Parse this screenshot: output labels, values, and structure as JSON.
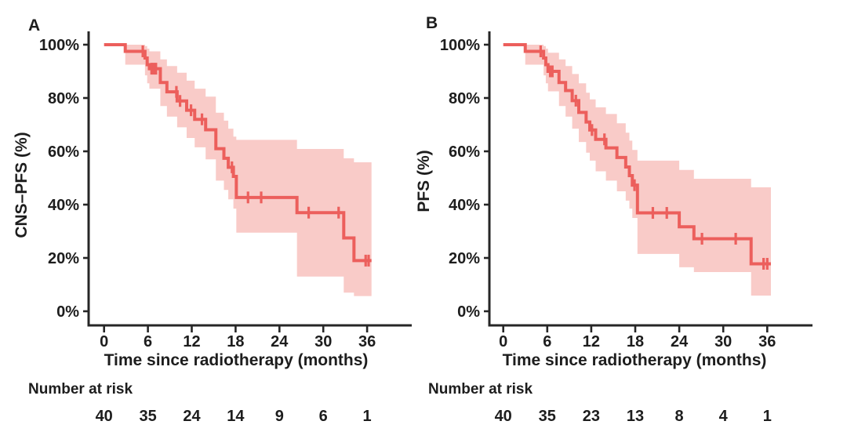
{
  "page": {
    "background": "#ffffff",
    "axis_color": "#262626",
    "text_color": "#1d1d1d"
  },
  "chart_data": [
    {
      "type": "line",
      "subtype": "kaplan_meier_step_with_ci",
      "panel_label": "A",
      "ylabel": "CNS–PFS (%)",
      "xlabel": "Time since radiotherapy (months)",
      "xlim": [
        0,
        42
      ],
      "ylim": [
        0,
        100
      ],
      "xticks": [
        0,
        6,
        12,
        18,
        24,
        30,
        36
      ],
      "xtick_labels": [
        "0",
        "6",
        "12",
        "18",
        "24",
        "30",
        "36"
      ],
      "ytick_values": [
        0,
        20,
        40,
        60,
        80,
        100
      ],
      "ytick_labels": [
        "0%",
        "20%",
        "40%",
        "60%",
        "80%",
        "100%"
      ],
      "grid": false,
      "legend": "none",
      "line_color": "#ec5f5c",
      "band_color": "#f9cbc8",
      "end_time": 36.6,
      "series": [
        {
          "name": "CNS-PFS",
          "steps": [
            [
              0,
              100
            ],
            [
              2.9,
              97.5
            ],
            [
              5.6,
              95
            ],
            [
              5.9,
              92.5
            ],
            [
              6.2,
              91
            ],
            [
              7.7,
              85.8
            ],
            [
              8.6,
              82.3
            ],
            [
              10.0,
              78.9
            ],
            [
              11.3,
              75.4
            ],
            [
              12.4,
              72
            ],
            [
              13.9,
              68.1
            ],
            [
              15.3,
              61
            ],
            [
              16.4,
              57.4
            ],
            [
              17.0,
              54
            ],
            [
              17.7,
              50.6
            ],
            [
              18.1,
              42.7
            ],
            [
              26.4,
              37
            ],
            [
              32.8,
              27.5
            ],
            [
              34.2,
              19
            ]
          ],
          "censor_marks": [
            [
              5.3,
              97.5
            ],
            [
              6.5,
              91
            ],
            [
              6.8,
              91
            ],
            [
              7.1,
              91
            ],
            [
              9.9,
              82.3
            ],
            [
              10.4,
              78.9
            ],
            [
              11.9,
              75.4
            ],
            [
              13.4,
              72
            ],
            [
              17.5,
              54
            ],
            [
              19.7,
              42.7
            ],
            [
              21.5,
              42.7
            ],
            [
              28.0,
              37
            ],
            [
              32.1,
              37
            ],
            [
              35.8,
              19
            ],
            [
              36.2,
              19
            ]
          ],
          "confidence_band": [
            [
              2.9,
              92.5,
              100
            ],
            [
              5.6,
              88.5,
              99.5
            ],
            [
              5.9,
              85.5,
              98.5
            ],
            [
              6.2,
              83.5,
              97.5
            ],
            [
              7.7,
              77,
              94.5
            ],
            [
              8.6,
              73,
              92
            ],
            [
              10.0,
              69,
              89.5
            ],
            [
              11.3,
              65,
              86.5
            ],
            [
              12.4,
              61.5,
              83.5
            ],
            [
              13.9,
              57,
              80.5
            ],
            [
              15.3,
              49,
              74.5
            ],
            [
              16.4,
              45.5,
              71.5
            ],
            [
              17.0,
              42,
              68.5
            ],
            [
              17.7,
              38.5,
              65.5
            ],
            [
              18.1,
              29.5,
              64.3
            ],
            [
              26.4,
              13,
              60.9
            ],
            [
              32.8,
              7,
              57.4
            ],
            [
              34.2,
              5.7,
              55.9
            ]
          ]
        }
      ],
      "number_at_risk": {
        "label": "Number at risk",
        "times": [
          0,
          6,
          12,
          18,
          24,
          30,
          36
        ],
        "counts": [
          40,
          35,
          24,
          14,
          9,
          6,
          1
        ]
      }
    },
    {
      "type": "line",
      "subtype": "kaplan_meier_step_with_ci",
      "panel_label": "B",
      "ylabel": "PFS (%)",
      "xlabel": "Time since radiotherapy (months)",
      "xlim": [
        0,
        42
      ],
      "ylim": [
        0,
        100
      ],
      "xticks": [
        0,
        6,
        12,
        18,
        24,
        30,
        36
      ],
      "xtick_labels": [
        "0",
        "6",
        "12",
        "18",
        "24",
        "30",
        "36"
      ],
      "ytick_values": [
        0,
        20,
        40,
        60,
        80,
        100
      ],
      "ytick_labels": [
        "0%",
        "20%",
        "40%",
        "60%",
        "80%",
        "100%"
      ],
      "grid": false,
      "legend": "none",
      "line_color": "#ec5f5c",
      "band_color": "#f9cbc8",
      "end_time": 36.5,
      "series": [
        {
          "name": "PFS",
          "steps": [
            [
              0,
              100
            ],
            [
              3.0,
              97.5
            ],
            [
              5.5,
              95
            ],
            [
              5.8,
              92.5
            ],
            [
              6.1,
              90
            ],
            [
              7.6,
              85.8
            ],
            [
              8.5,
              82.8
            ],
            [
              9.4,
              79
            ],
            [
              10.3,
              74.6
            ],
            [
              11.3,
              71
            ],
            [
              11.8,
              68
            ],
            [
              12.6,
              64.5
            ],
            [
              14.0,
              61.3
            ],
            [
              15.5,
              57.7
            ],
            [
              16.7,
              54.1
            ],
            [
              17.2,
              50.9
            ],
            [
              17.6,
              47.3
            ],
            [
              18.3,
              36.9
            ],
            [
              24.0,
              31.7
            ],
            [
              26.0,
              27.2
            ],
            [
              33.8,
              17.8
            ]
          ],
          "censor_marks": [
            [
              5.1,
              97.5
            ],
            [
              6.4,
              90
            ],
            [
              6.7,
              90
            ],
            [
              9.9,
              79
            ],
            [
              12.1,
              68
            ],
            [
              13.8,
              64.5
            ],
            [
              17.9,
              47.3
            ],
            [
              20.4,
              36.9
            ],
            [
              22.3,
              36.9
            ],
            [
              27.1,
              27.2
            ],
            [
              31.7,
              27.2
            ],
            [
              35.5,
              17.8
            ],
            [
              36.0,
              17.8
            ]
          ],
          "confidence_band": [
            [
              3.0,
              92.5,
              100
            ],
            [
              5.5,
              88.5,
              99.5
            ],
            [
              5.8,
              85.5,
              98.5
            ],
            [
              6.1,
              82.5,
              97
            ],
            [
              7.6,
              77,
              94.5
            ],
            [
              8.5,
              73,
              92
            ],
            [
              9.4,
              68.5,
              89
            ],
            [
              10.3,
              63.5,
              85.5
            ],
            [
              11.3,
              59.5,
              82
            ],
            [
              11.8,
              56.5,
              79.5
            ],
            [
              12.6,
              52.5,
              76.5
            ],
            [
              14.0,
              49,
              74
            ],
            [
              15.5,
              45,
              70.5
            ],
            [
              16.7,
              41.5,
              67
            ],
            [
              17.2,
              38.5,
              64
            ],
            [
              17.6,
              35,
              60.5
            ],
            [
              18.3,
              21.5,
              56.5
            ],
            [
              24.0,
              16.5,
              53
            ],
            [
              26.0,
              14.7,
              49.7
            ],
            [
              33.8,
              5.9,
              46.5
            ]
          ]
        }
      ],
      "number_at_risk": {
        "label": "Number at risk",
        "times": [
          0,
          6,
          12,
          18,
          24,
          30,
          36
        ],
        "counts": [
          40,
          35,
          23,
          13,
          8,
          4,
          1
        ]
      }
    }
  ]
}
